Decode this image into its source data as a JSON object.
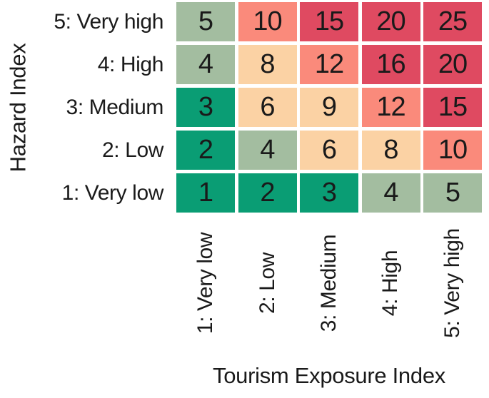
{
  "chart_data": {
    "type": "heatmap",
    "xlabel": "Tourism Exposure Index",
    "ylabel": "Hazard Index",
    "x_categories": [
      "1: Very low",
      "2: Low",
      "3: Medium",
      "4: High",
      "5: Very high"
    ],
    "y_categories": [
      "5: Very high",
      "4: High",
      "3: Medium",
      "2: Low",
      "1: Very low"
    ],
    "rows": [
      {
        "label": "5: Very high",
        "values": [
          5,
          10,
          15,
          20,
          25
        ]
      },
      {
        "label": "4: High",
        "values": [
          4,
          8,
          12,
          16,
          20
        ]
      },
      {
        "label": "3: Medium",
        "values": [
          3,
          6,
          9,
          12,
          15
        ]
      },
      {
        "label": "2: Low",
        "values": [
          2,
          4,
          6,
          8,
          10
        ]
      },
      {
        "label": "1: Very low",
        "values": [
          1,
          2,
          3,
          4,
          5
        ]
      }
    ],
    "color_scale": {
      "bins": [
        {
          "max": 3,
          "color": "#0a9d74",
          "name": "teal-green"
        },
        {
          "max": 5,
          "color": "#a3bda0",
          "name": "sage-green"
        },
        {
          "max": 9,
          "color": "#fbd2a4",
          "name": "peach"
        },
        {
          "max": 12,
          "color": "#fa8a7b",
          "name": "salmon"
        },
        {
          "max": 25,
          "color": "#df4a61",
          "name": "crimson"
        }
      ],
      "text_color": "#1a1a1a",
      "gap_color": "#ffffff"
    },
    "layout": {
      "grid": "off",
      "legend": "none",
      "x_tick_rotation_deg": 90,
      "y_title_rotation_deg": 90
    }
  }
}
